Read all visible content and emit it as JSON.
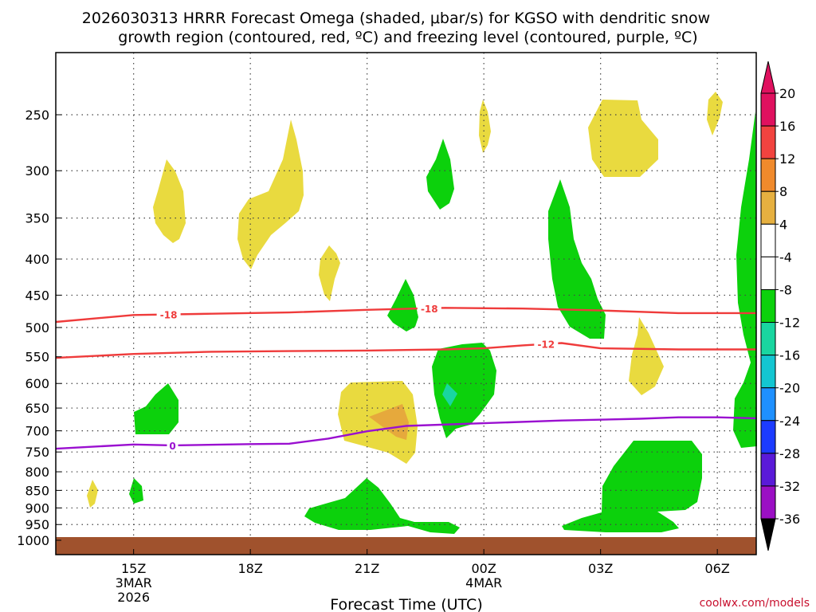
{
  "chart_data": {
    "type": "contour",
    "title_line1": "2026030313 HRRR Forecast Omega (shaded, μbar/s) for KGSO with dendritic snow",
    "title_line2": "growth region (contoured, red, ºC) and freezing level (contoured, purple, ºC)",
    "xlabel": "Forecast Time (UTC)",
    "credit": "coolwx.com/models",
    "y_levels": [
      "250",
      "300",
      "350",
      "400",
      "450",
      "500",
      "550",
      "600",
      "650",
      "700",
      "750",
      "800",
      "850",
      "900",
      "950",
      "1000"
    ],
    "x_ticks": [
      {
        "label": "15Z",
        "sub1": "3MAR",
        "sub2": "2026",
        "t": 15
      },
      {
        "label": "18Z",
        "sub1": "",
        "sub2": "",
        "t": 18
      },
      {
        "label": "21Z",
        "sub1": "",
        "sub2": "",
        "t": 21
      },
      {
        "label": "00Z",
        "sub1": "4MAR",
        "sub2": "",
        "t": 24
      },
      {
        "label": "03Z",
        "sub1": "",
        "sub2": "",
        "t": 27
      },
      {
        "label": "06Z",
        "sub1": "",
        "sub2": "",
        "t": 30
      }
    ],
    "xlim_hours": [
      13,
      31
    ],
    "colorbar": [
      {
        "label": "20",
        "color": "#e0115f"
      },
      {
        "label": "16",
        "color": "#f2433f"
      },
      {
        "label": "12",
        "color": "#f08a2c"
      },
      {
        "label": "8",
        "color": "#e6b040"
      },
      {
        "label": "4",
        "color": "#e9da3f"
      },
      {
        "label": "-4",
        "color": "#ffffff"
      },
      {
        "label": "-8",
        "color": "#0cd10c"
      },
      {
        "label": "-12",
        "color": "#19d6a0"
      },
      {
        "label": "-16",
        "color": "#13c6d1"
      },
      {
        "label": "-20",
        "color": "#1e90ff"
      },
      {
        "label": "-24",
        "color": "#1c3bff"
      },
      {
        "label": "-28",
        "color": "#5a1ad8"
      },
      {
        "label": "-32",
        "color": "#9b0fc4"
      },
      {
        "label": "-36",
        "color": "#a9a9a9"
      }
    ],
    "contours": [
      {
        "name": "dgz-minus-18",
        "value": "-18",
        "color": "#ef3b3b",
        "label_hours": [
          15.9,
          22.6
        ],
        "points": [
          [
            13,
            491
          ],
          [
            15,
            480
          ],
          [
            17,
            478
          ],
          [
            19,
            476
          ],
          [
            21,
            472
          ],
          [
            23,
            469
          ],
          [
            25,
            470
          ],
          [
            27,
            473
          ],
          [
            29,
            477
          ],
          [
            31,
            477
          ]
        ]
      },
      {
        "name": "dgz-minus-12",
        "value": "-12",
        "color": "#ef3b3b",
        "label_hours": [
          25.6
        ],
        "points": [
          [
            13,
            552
          ],
          [
            15,
            545
          ],
          [
            17,
            541
          ],
          [
            19,
            540
          ],
          [
            21,
            539
          ],
          [
            23,
            537
          ],
          [
            24,
            535
          ],
          [
            25,
            530
          ],
          [
            26,
            526
          ],
          [
            27,
            535
          ],
          [
            29,
            537
          ],
          [
            31,
            537
          ]
        ]
      },
      {
        "name": "freezing-level",
        "value": "0",
        "color": "#9a0fd0",
        "label_hours": [
          16
        ],
        "points": [
          [
            13,
            742
          ],
          [
            15,
            732
          ],
          [
            16,
            734
          ],
          [
            18,
            731
          ],
          [
            19,
            730
          ],
          [
            20,
            718
          ],
          [
            21,
            701
          ],
          [
            22,
            689
          ],
          [
            24,
            683
          ],
          [
            26,
            677
          ],
          [
            28,
            673
          ],
          [
            29,
            670
          ],
          [
            30,
            670
          ],
          [
            31,
            672
          ]
        ]
      }
    ],
    "surface": {
      "label": "ground",
      "color": "#a0522d"
    }
  }
}
